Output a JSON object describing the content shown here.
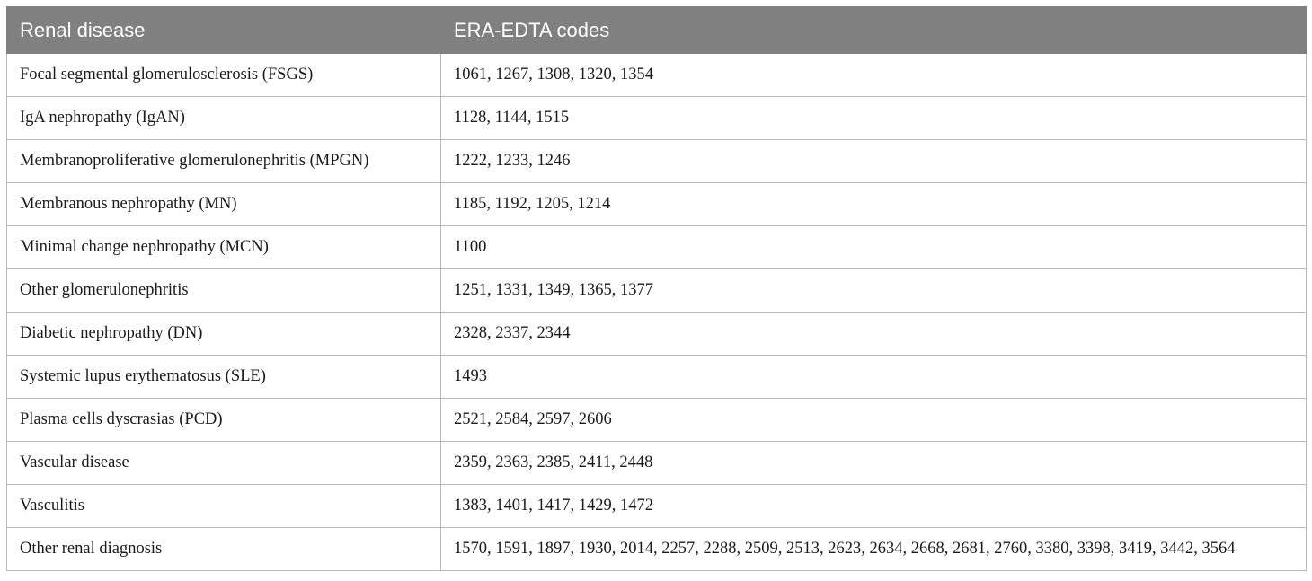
{
  "table": {
    "headers": [
      "Renal disease",
      "ERA-EDTA codes"
    ],
    "rows": [
      {
        "disease": "Focal segmental glomerulosclerosis (FSGS)",
        "codes": "1061, 1267, 1308, 1320, 1354"
      },
      {
        "disease": "IgA nephropathy (IgAN)",
        "codes": "1128, 1144, 1515"
      },
      {
        "disease": "Membranoproliferative glomerulonephritis (MPGN)",
        "codes": "1222, 1233, 1246"
      },
      {
        "disease": "Membranous nephropathy (MN)",
        "codes": "1185, 1192, 1205, 1214"
      },
      {
        "disease": "Minimal change nephropathy (MCN)",
        "codes": "1100"
      },
      {
        "disease": "Other glomerulonephritis",
        "codes": "1251, 1331, 1349, 1365, 1377"
      },
      {
        "disease": "Diabetic nephropathy (DN)",
        "codes": "2328, 2337, 2344"
      },
      {
        "disease": "Systemic lupus erythematosus (SLE)",
        "codes": "1493"
      },
      {
        "disease": "Plasma cells dyscrasias (PCD)",
        "codes": "2521, 2584, 2597, 2606"
      },
      {
        "disease": "Vascular disease",
        "codes": "2359, 2363, 2385, 2411, 2448"
      },
      {
        "disease": "Vasculitis",
        "codes": "1383, 1401, 1417, 1429, 1472"
      },
      {
        "disease": "Other renal diagnosis",
        "codes": "1570, 1591, 1897, 1930, 2014, 2257, 2288, 2509, 2513, 2623, 2634, 2668, 2681, 2760, 3380, 3398, 3419, 3442, 3564"
      }
    ]
  },
  "colors": {
    "header_bg": "#808080",
    "header_text": "#ffffff",
    "grid_line": "#b8b8b8"
  }
}
